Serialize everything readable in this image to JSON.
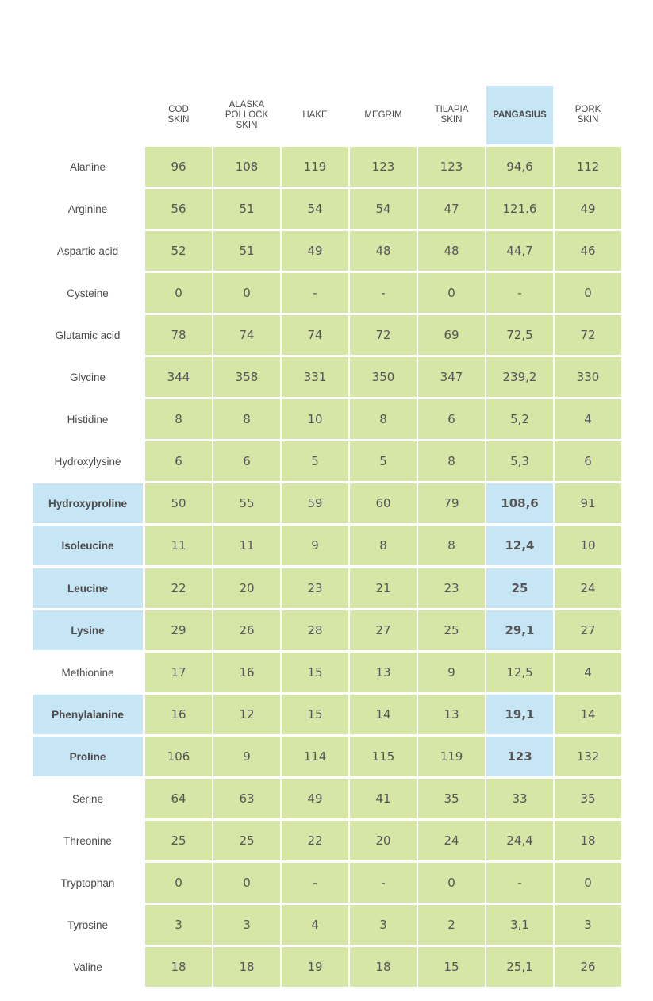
{
  "chart_data": {
    "type": "table",
    "columns": [
      {
        "label": "COD\nSKIN",
        "highlight": false
      },
      {
        "label": "ALASKA\nPOLLOCK\nSKIN",
        "highlight": false
      },
      {
        "label": "HAKE",
        "highlight": false
      },
      {
        "label": "MEGRIM",
        "highlight": false
      },
      {
        "label": "TILAPIA\nSKIN",
        "highlight": false
      },
      {
        "label": "PANGASIUS",
        "highlight": true
      },
      {
        "label": "PORK\nSKIN",
        "highlight": false
      }
    ],
    "rows": [
      {
        "label": "Alanine",
        "highlight": false,
        "values": [
          "96",
          "108",
          "119",
          "123",
          "123",
          "94,6",
          "112"
        ]
      },
      {
        "label": "Arginine",
        "highlight": false,
        "values": [
          "56",
          "51",
          "54",
          "54",
          "47",
          "121.6",
          "49"
        ]
      },
      {
        "label": "Aspartic acid",
        "highlight": false,
        "values": [
          "52",
          "51",
          "49",
          "48",
          "48",
          "44,7",
          "46"
        ]
      },
      {
        "label": "Cysteine",
        "highlight": false,
        "values": [
          "0",
          "0",
          "-",
          "-",
          "0",
          "-",
          "0"
        ]
      },
      {
        "label": "Glutamic acid",
        "highlight": false,
        "values": [
          "78",
          "74",
          "74",
          "72",
          "69",
          "72,5",
          "72"
        ]
      },
      {
        "label": "Glycine",
        "highlight": false,
        "values": [
          "344",
          "358",
          "331",
          "350",
          "347",
          "239,2",
          "330"
        ]
      },
      {
        "label": "Histidine",
        "highlight": false,
        "values": [
          "8",
          "8",
          "10",
          "8",
          "6",
          "5,2",
          "4"
        ]
      },
      {
        "label": "Hydroxylysine",
        "highlight": false,
        "values": [
          "6",
          "6",
          "5",
          "5",
          "8",
          "5,3",
          "6"
        ]
      },
      {
        "label": "Hydroxyproline",
        "highlight": true,
        "values": [
          "50",
          "55",
          "59",
          "60",
          "79",
          "108,6",
          "91"
        ]
      },
      {
        "label": "Isoleucine",
        "highlight": true,
        "values": [
          "11",
          "11",
          "9",
          "8",
          "8",
          "12,4",
          "10"
        ]
      },
      {
        "label": "Leucine",
        "highlight": true,
        "values": [
          "22",
          "20",
          "23",
          "21",
          "23",
          "25",
          "24"
        ]
      },
      {
        "label": "Lysine",
        "highlight": true,
        "values": [
          "29",
          "26",
          "28",
          "27",
          "25",
          "29,1",
          "27"
        ]
      },
      {
        "label": "Methionine",
        "highlight": false,
        "values": [
          "17",
          "16",
          "15",
          "13",
          "9",
          "12,5",
          "4"
        ]
      },
      {
        "label": "Phenylalanine",
        "highlight": true,
        "values": [
          "16",
          "12",
          "15",
          "14",
          "13",
          "19,1",
          "14"
        ]
      },
      {
        "label": "Proline",
        "highlight": true,
        "values": [
          "106",
          "9",
          "114",
          "115",
          "119",
          "123",
          "132"
        ]
      },
      {
        "label": "Serine",
        "highlight": false,
        "values": [
          "64",
          "63",
          "49",
          "41",
          "35",
          "33",
          "35"
        ]
      },
      {
        "label": "Threonine",
        "highlight": false,
        "values": [
          "25",
          "25",
          "22",
          "20",
          "24",
          "24,4",
          "18"
        ]
      },
      {
        "label": "Tryptophan",
        "highlight": false,
        "values": [
          "0",
          "0",
          "-",
          "-",
          "0",
          "-",
          "0"
        ]
      },
      {
        "label": "Tyrosine",
        "highlight": false,
        "values": [
          "3",
          "3",
          "4",
          "3",
          "2",
          "3,1",
          "3"
        ]
      },
      {
        "label": "Valine",
        "highlight": false,
        "values": [
          "18",
          "18",
          "19",
          "18",
          "15",
          "25,1",
          "26"
        ]
      }
    ]
  },
  "colors": {
    "cell_green": "#d5e6a7",
    "highlight_blue": "#c7e6f5",
    "text": "#4b4b4b"
  }
}
